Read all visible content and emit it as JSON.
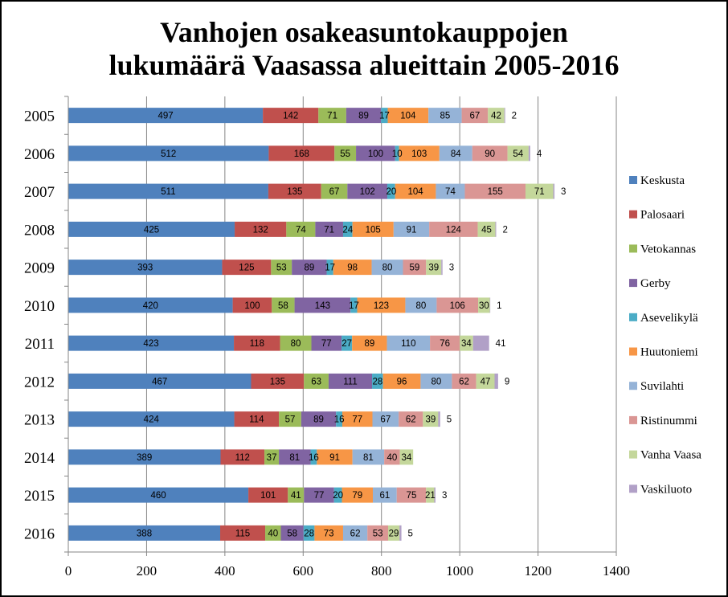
{
  "chart_data": {
    "type": "bar",
    "orientation": "horizontal",
    "stacked": true,
    "title_lines": [
      "Vanhojen osakeasuntokauppojen",
      "lukumäärä Vaasassa alueittain 2005-2016"
    ],
    "categories": [
      "2005",
      "2006",
      "2007",
      "2008",
      "2009",
      "2010",
      "2011",
      "2012",
      "2013",
      "2014",
      "2015",
      "2016"
    ],
    "xlim": [
      0,
      1400
    ],
    "xticks": [
      0,
      200,
      400,
      600,
      800,
      1000,
      1200,
      1400
    ],
    "grid": true,
    "legend_position": "right",
    "series": [
      {
        "name": "Keskusta",
        "color": "#4F81BD",
        "label_color": "#000000",
        "values": [
          497,
          512,
          511,
          425,
          393,
          420,
          423,
          467,
          424,
          389,
          460,
          388
        ]
      },
      {
        "name": "Palosaari",
        "color": "#C0504D",
        "label_color": "#000000",
        "values": [
          142,
          168,
          135,
          132,
          125,
          100,
          118,
          135,
          114,
          112,
          101,
          115
        ]
      },
      {
        "name": "Vetokannas",
        "color": "#9BBB59",
        "label_color": "#000000",
        "values": [
          71,
          55,
          67,
          74,
          53,
          58,
          80,
          63,
          57,
          37,
          41,
          40
        ]
      },
      {
        "name": "Gerby",
        "color": "#8064A2",
        "label_color": "#000000",
        "values": [
          89,
          100,
          102,
          71,
          89,
          143,
          77,
          111,
          89,
          81,
          77,
          58
        ]
      },
      {
        "name": "Asevelikylä",
        "color": "#4BACC6",
        "label_color": "#000000",
        "values": [
          17,
          10,
          20,
          24,
          17,
          17,
          27,
          28,
          16,
          16,
          20,
          28
        ]
      },
      {
        "name": "Huutoniemi",
        "color": "#F79646",
        "label_color": "#000000",
        "values": [
          104,
          103,
          104,
          105,
          98,
          123,
          89,
          96,
          77,
          91,
          79,
          73
        ]
      },
      {
        "name": "Suvilahti",
        "color": "#95B3D7",
        "label_color": "#000000",
        "values": [
          85,
          84,
          74,
          91,
          80,
          80,
          110,
          80,
          67,
          81,
          61,
          62
        ]
      },
      {
        "name": "Ristinummi",
        "color": "#DA9694",
        "label_color": "#000000",
        "values": [
          67,
          90,
          155,
          124,
          59,
          106,
          76,
          62,
          62,
          40,
          75,
          53
        ]
      },
      {
        "name": "Vanha Vaasa",
        "color": "#C4D79B",
        "label_color": "#000000",
        "values": [
          42,
          54,
          71,
          45,
          39,
          30,
          34,
          47,
          39,
          34,
          21,
          29
        ]
      },
      {
        "name": "Vaskiluoto",
        "color": "#B1A0C7",
        "label_color": "#000000",
        "values": [
          2,
          4,
          3,
          2,
          3,
          1,
          41,
          9,
          5,
          0,
          3,
          5
        ]
      }
    ]
  }
}
